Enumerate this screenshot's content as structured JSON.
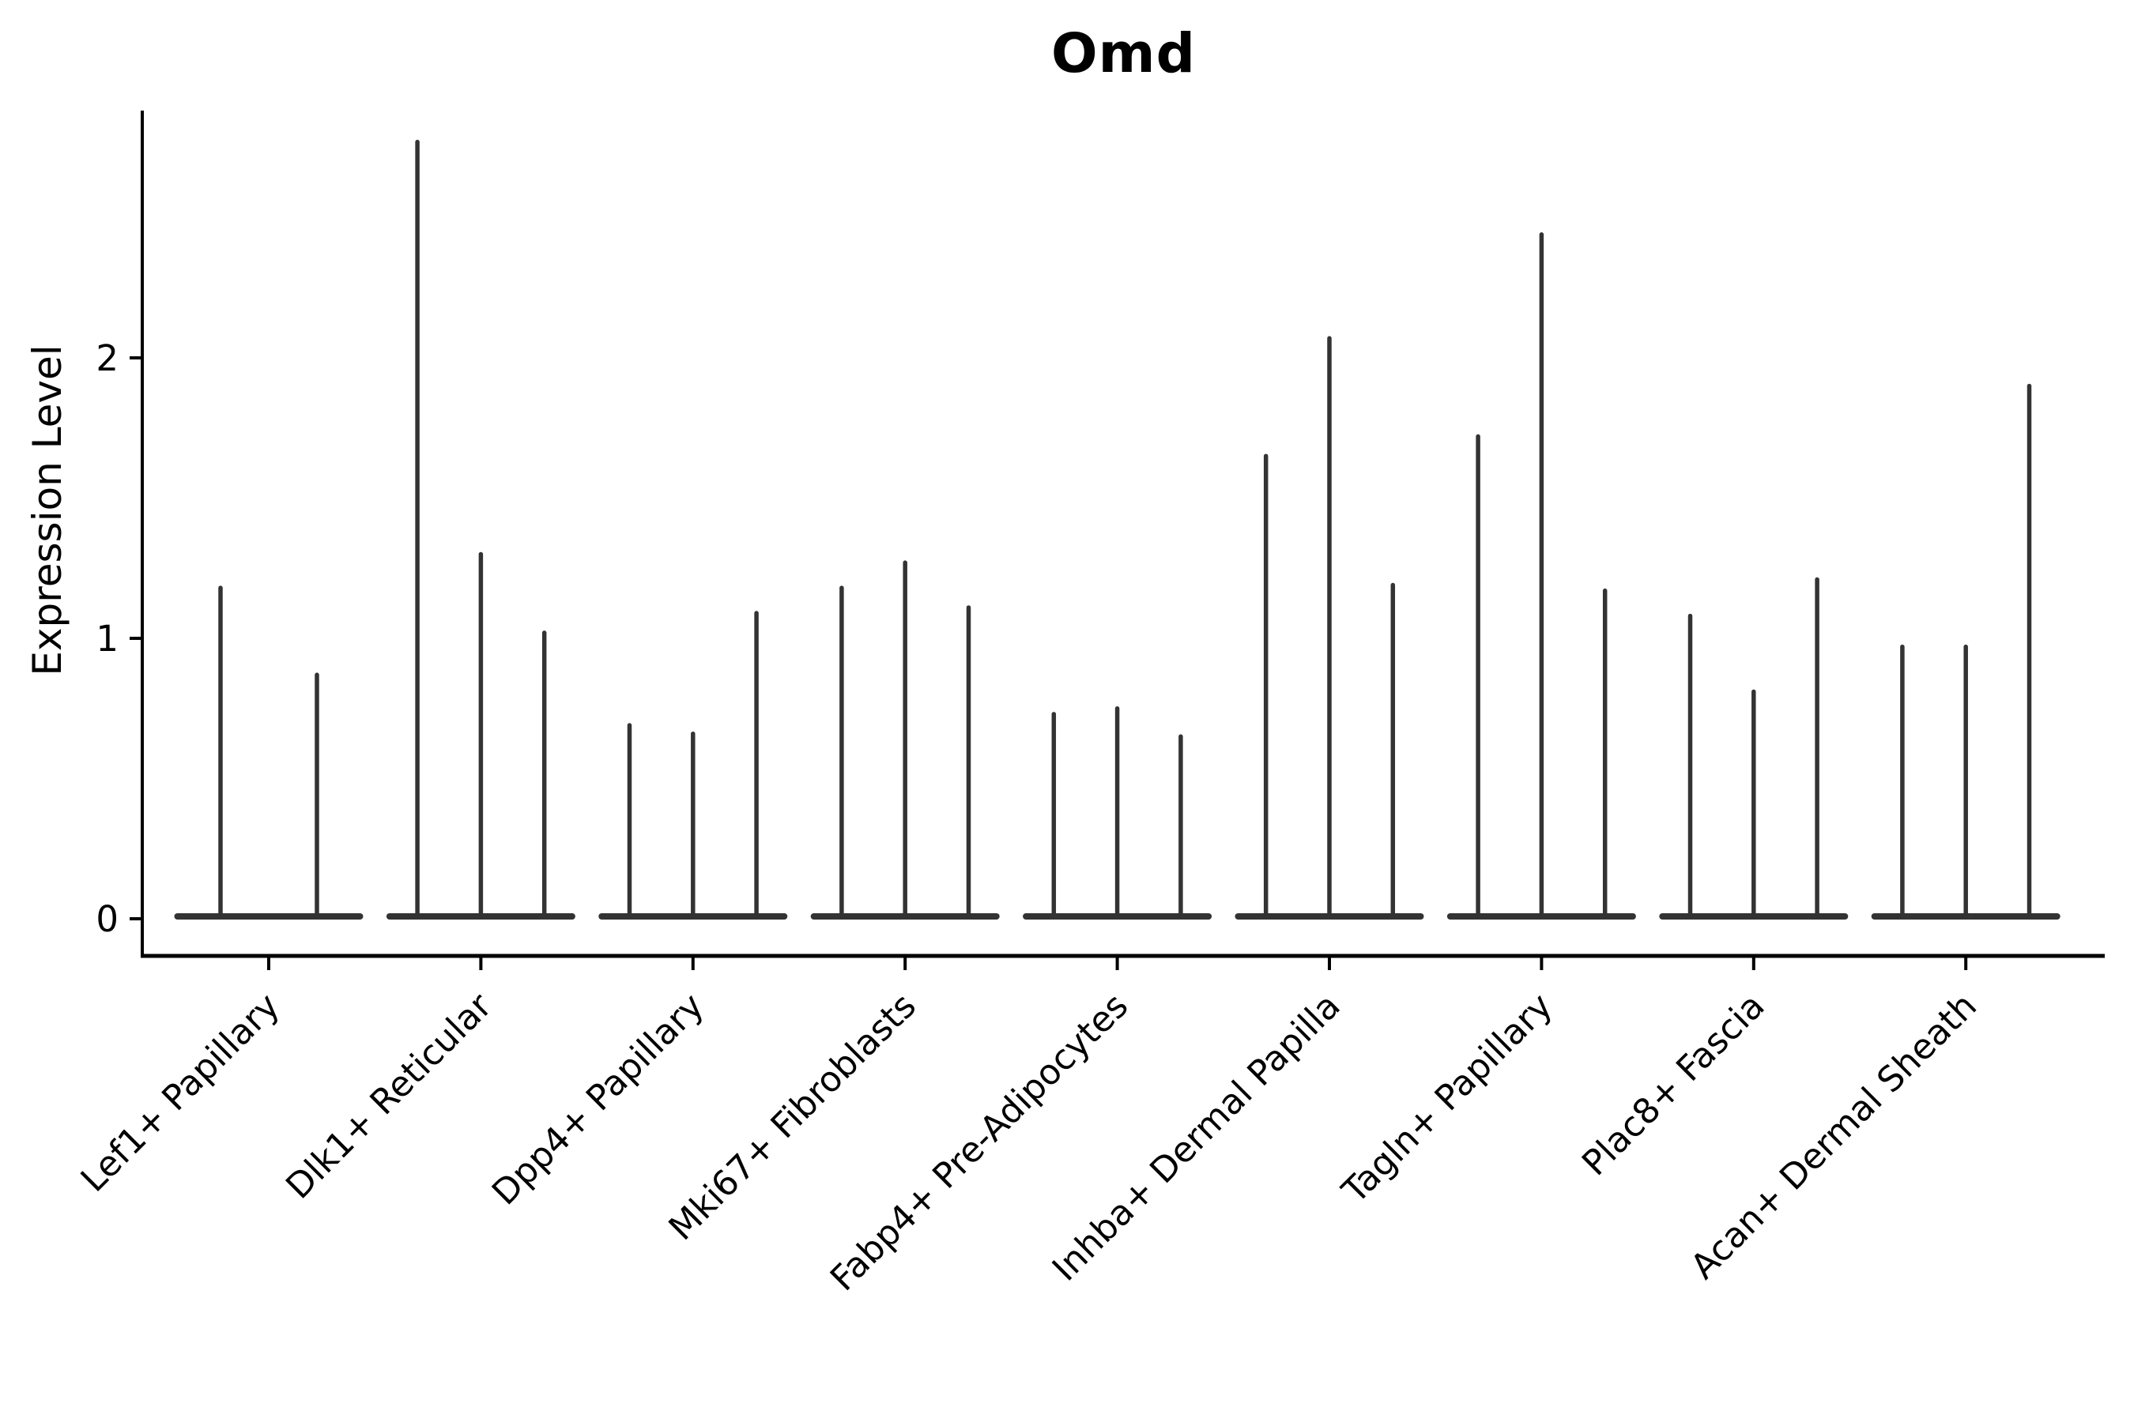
{
  "figure": {
    "background": "#ffffff"
  },
  "chart_data": {
    "type": "violin",
    "title": "Omd",
    "xlabel": "",
    "ylabel": "Expression Level",
    "yticks": [
      0,
      1,
      2
    ],
    "ylim": [
      -0.13,
      2.88
    ],
    "grid": false,
    "legend_position": "none",
    "description": "Violin plot of Omd expression level per fibroblast cluster; each cluster shows 2-3 narrow violins whose mass sits at 0 with a thin spike up to the max expression value.",
    "categories": [
      "Lef1+ Papillary",
      "Dlk1+ Reticular",
      "Dpp4+ Papillary",
      "Mki67+ Fibroblasts",
      "Fabp4+ Pre-Adipocytes",
      "Inhba+ Dermal Papilla",
      "Tagln+ Papillary",
      "Plac8+ Fascia",
      "Acan+ Dermal Sheath"
    ],
    "groups": [
      {
        "label": "Lef1+ Papillary",
        "violin_max": [
          1.18,
          0.87
        ]
      },
      {
        "label": "Dlk1+ Reticular",
        "violin_max": [
          2.77,
          1.3,
          1.02
        ]
      },
      {
        "label": "Dpp4+ Papillary",
        "violin_max": [
          0.69,
          0.66,
          1.09
        ]
      },
      {
        "label": "Mki67+ Fibroblasts",
        "violin_max": [
          1.18,
          1.27,
          1.11
        ]
      },
      {
        "label": "Fabp4+ Pre-Adipocytes",
        "violin_max": [
          0.73,
          0.75,
          0.65
        ]
      },
      {
        "label": "Inhba+ Dermal Papilla",
        "violin_max": [
          1.65,
          2.07,
          1.19
        ]
      },
      {
        "label": "Tagln+ Papillary",
        "violin_max": [
          1.72,
          2.44,
          1.17
        ]
      },
      {
        "label": "Plac8+ Fascia",
        "violin_max": [
          1.08,
          0.81,
          1.21
        ]
      },
      {
        "label": "Acan+ Dermal Sheath",
        "violin_max": [
          0.97,
          0.97,
          1.9
        ]
      }
    ],
    "colors": {
      "violin": "#333333",
      "axis": "#000000",
      "text": "#000000",
      "background": "#ffffff"
    }
  }
}
